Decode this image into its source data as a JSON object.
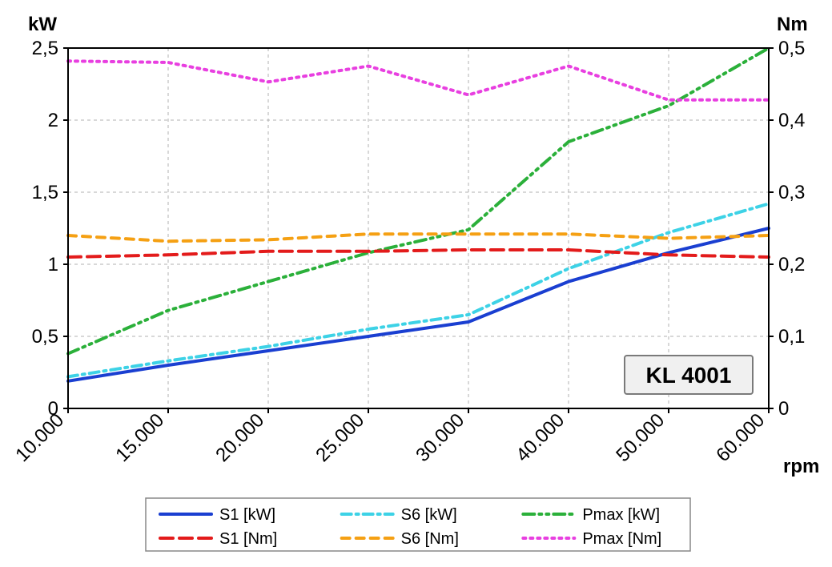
{
  "chart": {
    "type": "line",
    "title_box": "KL 4001",
    "x_axis": {
      "label": "rpm",
      "categories": [
        "10.000",
        "15.000",
        "20.000",
        "25.000",
        "30.000",
        "40.000",
        "50.000",
        "60.000"
      ],
      "label_fontsize": 24,
      "tick_fontsize": 24,
      "tick_rotation": -45
    },
    "y_left": {
      "label": "kW",
      "min": 0,
      "max": 2.5,
      "step": 0.5,
      "ticks": [
        "0",
        "0,5",
        "1",
        "1,5",
        "2",
        "2,5"
      ],
      "label_fontsize": 24,
      "tick_fontsize": 24
    },
    "y_right": {
      "label": "Nm",
      "min": 0,
      "max": 0.5,
      "step": 0.1,
      "ticks": [
        "0",
        "0,1",
        "0,2",
        "0,3",
        "0,4",
        "0,5"
      ],
      "label_fontsize": 24,
      "tick_fontsize": 24
    },
    "background_color": "#ffffff",
    "plot_border_color": "#000000",
    "plot_border_width": 2,
    "grid_color": "#b0b0b0",
    "grid_dash": "4,4",
    "grid_width": 1,
    "line_width": 4,
    "series": [
      {
        "name": "S1 [kW]",
        "axis": "left",
        "color": "#1a3fd1",
        "dash": "",
        "values": [
          0.19,
          0.3,
          0.4,
          0.5,
          0.6,
          0.88,
          1.08,
          1.25
        ]
      },
      {
        "name": "S6 [kW]",
        "axis": "left",
        "color": "#3dd2e6",
        "dash": "12,6,3,6",
        "values": [
          0.22,
          0.33,
          0.43,
          0.55,
          0.65,
          0.97,
          1.22,
          1.42
        ]
      },
      {
        "name": "Pmax [kW]",
        "axis": "left",
        "color": "#2bb03a",
        "dash": "14,6,3,6,3,6",
        "values": [
          0.38,
          0.68,
          0.88,
          1.08,
          1.24,
          1.85,
          2.1,
          2.5
        ]
      },
      {
        "name": "S1 [Nm]",
        "axis": "right",
        "color": "#e31b1b",
        "dash": "16,8",
        "values": [
          0.21,
          0.213,
          0.218,
          0.218,
          0.22,
          0.22,
          0.213,
          0.21
        ]
      },
      {
        "name": "S6 [Nm]",
        "axis": "right",
        "color": "#f5a013",
        "dash": "10,8",
        "values": [
          0.24,
          0.232,
          0.234,
          0.242,
          0.242,
          0.242,
          0.236,
          0.24
        ]
      },
      {
        "name": "Pmax [Nm]",
        "axis": "right",
        "color": "#e83fe0",
        "dash": "3,6",
        "values": [
          0.482,
          0.48,
          0.453,
          0.475,
          0.435,
          0.475,
          0.428,
          0.428
        ]
      }
    ],
    "legend": {
      "rows": 2,
      "cols": 3,
      "order": [
        0,
        1,
        2,
        3,
        4,
        5
      ],
      "fontsize": 20
    },
    "inset_box": {
      "bg": "#f0f0f0",
      "border": "#7a7a7a",
      "fontsize": 28
    }
  }
}
